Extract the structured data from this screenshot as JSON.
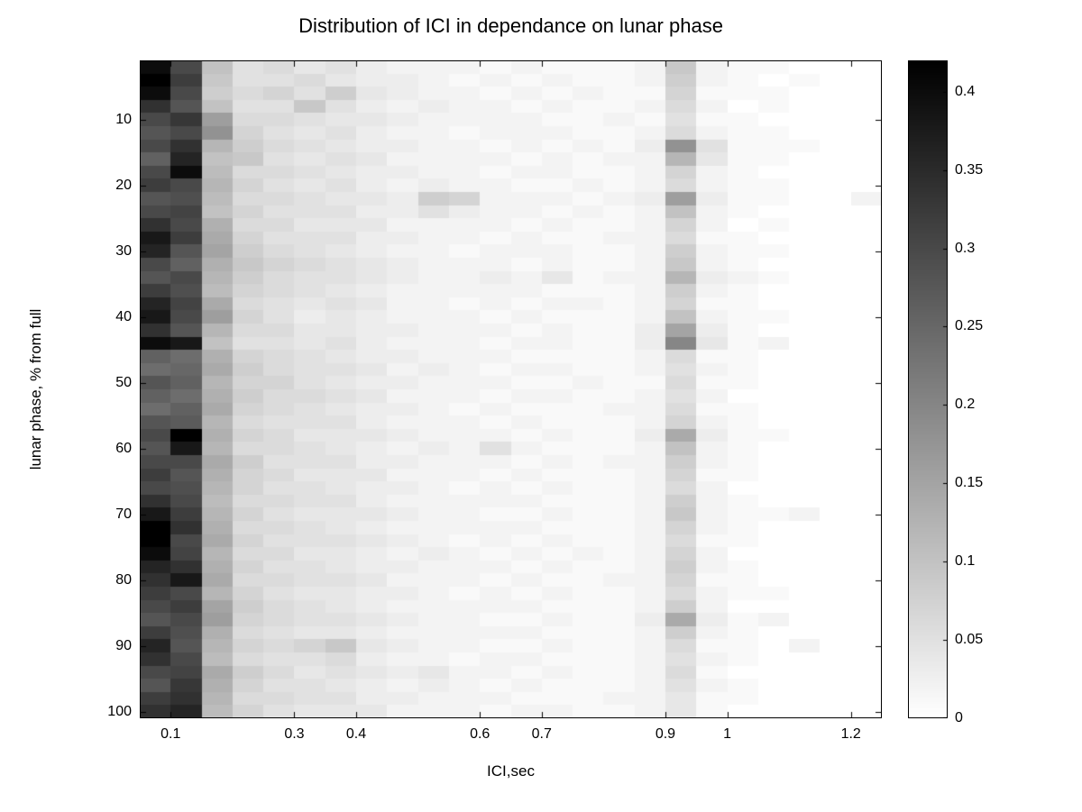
{
  "colors": {
    "background": "#ffffff",
    "axis": "#000000",
    "low": "#ffffff",
    "high": "#000000"
  },
  "chart_data": {
    "type": "heatmap",
    "title": "Distribution of ICI in dependance on lunar phase",
    "xlabel": "ICI,sec",
    "ylabel": "lunar phase, % from full",
    "colormap": "reversed-gray (0 = white, max = black)",
    "grid": false,
    "y_reversed": true,
    "xlim": [
      0.05,
      1.25
    ],
    "ylim": [
      1,
      101
    ],
    "x_ticks": {
      "values": [
        0.1,
        0.3,
        0.4,
        0.6,
        0.7,
        0.9,
        1,
        1.2
      ],
      "labels": [
        "0.1",
        "0.3",
        "0.4",
        "0.6",
        "0.7",
        "0.9",
        "1",
        "1.2"
      ]
    },
    "y_ticks": {
      "values": [
        10,
        20,
        30,
        40,
        50,
        60,
        70,
        80,
        90,
        100
      ],
      "labels": [
        "10",
        "20",
        "30",
        "40",
        "50",
        "60",
        "70",
        "80",
        "90",
        "100"
      ]
    },
    "colorbar": {
      "min": 0,
      "max": 0.42,
      "tick_values": [
        0,
        0.05,
        0.1,
        0.15,
        0.2,
        0.25,
        0.3,
        0.35,
        0.4
      ],
      "tick_labels": [
        "0",
        "0.05",
        "0.1",
        "0.15",
        "0.2",
        "0.25",
        "0.3",
        "0.35",
        "0.4"
      ],
      "position": "right"
    },
    "x_bin_centers": [
      0.075,
      0.125,
      0.175,
      0.225,
      0.275,
      0.325,
      0.375,
      0.425,
      0.475,
      0.525,
      0.575,
      0.625,
      0.675,
      0.725,
      0.775,
      0.825,
      0.875,
      0.925,
      0.975,
      1.025,
      1.075,
      1.125,
      1.175,
      1.225
    ],
    "y_bin_centers": [
      2,
      4,
      6,
      8,
      10,
      12,
      14,
      16,
      18,
      20,
      22,
      24,
      26,
      28,
      30,
      32,
      34,
      36,
      38,
      40,
      42,
      44,
      46,
      48,
      50,
      52,
      54,
      56,
      58,
      60,
      62,
      64,
      66,
      68,
      70,
      72,
      74,
      76,
      78,
      80,
      82,
      84,
      86,
      88,
      90,
      92,
      94,
      96,
      98,
      100
    ],
    "values": [
      [
        0.4,
        0.3,
        0.1,
        0.05,
        0.06,
        0.04,
        0.05,
        0.03,
        0.02,
        0.02,
        0.02,
        0.01,
        0.02,
        0.01,
        0.01,
        0.01,
        0.02,
        0.09,
        0.02,
        0.01,
        0.01,
        0.0,
        0.0,
        0.0
      ],
      [
        0.42,
        0.32,
        0.09,
        0.05,
        0.05,
        0.06,
        0.04,
        0.03,
        0.03,
        0.02,
        0.01,
        0.02,
        0.01,
        0.02,
        0.01,
        0.01,
        0.02,
        0.08,
        0.02,
        0.01,
        0.0,
        0.01,
        0.0,
        0.0
      ],
      [
        0.4,
        0.3,
        0.08,
        0.06,
        0.07,
        0.05,
        0.08,
        0.04,
        0.03,
        0.02,
        0.02,
        0.01,
        0.02,
        0.01,
        0.02,
        0.01,
        0.01,
        0.07,
        0.01,
        0.01,
        0.01,
        0.0,
        0.0,
        0.0
      ],
      [
        0.34,
        0.28,
        0.1,
        0.05,
        0.05,
        0.09,
        0.05,
        0.03,
        0.02,
        0.03,
        0.02,
        0.02,
        0.01,
        0.02,
        0.01,
        0.01,
        0.02,
        0.06,
        0.02,
        0.0,
        0.01,
        0.0,
        0.0,
        0.0
      ],
      [
        0.3,
        0.33,
        0.16,
        0.06,
        0.06,
        0.05,
        0.04,
        0.04,
        0.03,
        0.02,
        0.02,
        0.02,
        0.02,
        0.01,
        0.01,
        0.02,
        0.01,
        0.05,
        0.01,
        0.01,
        0.0,
        0.0,
        0.0,
        0.0
      ],
      [
        0.28,
        0.3,
        0.18,
        0.07,
        0.05,
        0.04,
        0.05,
        0.03,
        0.02,
        0.02,
        0.01,
        0.02,
        0.02,
        0.02,
        0.01,
        0.01,
        0.02,
        0.06,
        0.02,
        0.01,
        0.01,
        0.0,
        0.0,
        0.0
      ],
      [
        0.3,
        0.34,
        0.12,
        0.08,
        0.06,
        0.05,
        0.04,
        0.03,
        0.03,
        0.02,
        0.02,
        0.01,
        0.02,
        0.01,
        0.02,
        0.01,
        0.03,
        0.18,
        0.05,
        0.01,
        0.01,
        0.01,
        0.0,
        0.0
      ],
      [
        0.26,
        0.36,
        0.1,
        0.09,
        0.05,
        0.04,
        0.05,
        0.04,
        0.02,
        0.02,
        0.02,
        0.02,
        0.01,
        0.02,
        0.01,
        0.02,
        0.02,
        0.12,
        0.04,
        0.01,
        0.01,
        0.0,
        0.0,
        0.0
      ],
      [
        0.3,
        0.4,
        0.11,
        0.06,
        0.06,
        0.05,
        0.04,
        0.03,
        0.03,
        0.02,
        0.02,
        0.01,
        0.02,
        0.02,
        0.01,
        0.01,
        0.02,
        0.07,
        0.02,
        0.01,
        0.0,
        0.0,
        0.0,
        0.0
      ],
      [
        0.32,
        0.3,
        0.12,
        0.07,
        0.05,
        0.04,
        0.05,
        0.03,
        0.02,
        0.03,
        0.02,
        0.02,
        0.01,
        0.01,
        0.02,
        0.01,
        0.02,
        0.06,
        0.02,
        0.01,
        0.01,
        0.0,
        0.0,
        0.0
      ],
      [
        0.28,
        0.29,
        0.11,
        0.06,
        0.06,
        0.05,
        0.04,
        0.04,
        0.03,
        0.08,
        0.07,
        0.02,
        0.02,
        0.02,
        0.01,
        0.02,
        0.03,
        0.16,
        0.03,
        0.01,
        0.01,
        0.0,
        0.0,
        0.02
      ],
      [
        0.3,
        0.31,
        0.1,
        0.07,
        0.05,
        0.05,
        0.05,
        0.03,
        0.03,
        0.05,
        0.03,
        0.02,
        0.02,
        0.01,
        0.02,
        0.01,
        0.02,
        0.1,
        0.02,
        0.01,
        0.0,
        0.0,
        0.0,
        0.0
      ],
      [
        0.34,
        0.3,
        0.13,
        0.06,
        0.06,
        0.04,
        0.04,
        0.04,
        0.02,
        0.02,
        0.02,
        0.02,
        0.01,
        0.02,
        0.01,
        0.01,
        0.02,
        0.07,
        0.02,
        0.0,
        0.01,
        0.0,
        0.0,
        0.0
      ],
      [
        0.38,
        0.32,
        0.14,
        0.07,
        0.05,
        0.05,
        0.05,
        0.03,
        0.03,
        0.02,
        0.02,
        0.01,
        0.02,
        0.01,
        0.01,
        0.02,
        0.02,
        0.06,
        0.01,
        0.01,
        0.0,
        0.0,
        0.0,
        0.0
      ],
      [
        0.36,
        0.28,
        0.15,
        0.08,
        0.06,
        0.05,
        0.04,
        0.03,
        0.02,
        0.02,
        0.01,
        0.02,
        0.02,
        0.02,
        0.01,
        0.01,
        0.02,
        0.08,
        0.02,
        0.01,
        0.01,
        0.0,
        0.0,
        0.0
      ],
      [
        0.3,
        0.26,
        0.13,
        0.09,
        0.07,
        0.06,
        0.05,
        0.04,
        0.03,
        0.02,
        0.02,
        0.02,
        0.01,
        0.02,
        0.01,
        0.01,
        0.02,
        0.09,
        0.02,
        0.01,
        0.0,
        0.0,
        0.0,
        0.0
      ],
      [
        0.28,
        0.3,
        0.12,
        0.08,
        0.06,
        0.05,
        0.05,
        0.04,
        0.03,
        0.02,
        0.02,
        0.03,
        0.02,
        0.04,
        0.01,
        0.02,
        0.02,
        0.12,
        0.03,
        0.02,
        0.01,
        0.0,
        0.0,
        0.0
      ],
      [
        0.32,
        0.29,
        0.11,
        0.07,
        0.06,
        0.05,
        0.04,
        0.03,
        0.02,
        0.02,
        0.02,
        0.02,
        0.02,
        0.01,
        0.01,
        0.01,
        0.02,
        0.08,
        0.02,
        0.01,
        0.0,
        0.0,
        0.0,
        0.0
      ],
      [
        0.36,
        0.31,
        0.14,
        0.06,
        0.05,
        0.04,
        0.05,
        0.04,
        0.02,
        0.02,
        0.01,
        0.02,
        0.01,
        0.02,
        0.02,
        0.01,
        0.02,
        0.07,
        0.01,
        0.01,
        0.0,
        0.0,
        0.0,
        0.0
      ],
      [
        0.38,
        0.3,
        0.16,
        0.07,
        0.05,
        0.03,
        0.04,
        0.03,
        0.02,
        0.02,
        0.02,
        0.01,
        0.02,
        0.01,
        0.01,
        0.01,
        0.02,
        0.1,
        0.02,
        0.01,
        0.01,
        0.0,
        0.0,
        0.0
      ],
      [
        0.34,
        0.28,
        0.12,
        0.06,
        0.06,
        0.04,
        0.04,
        0.03,
        0.03,
        0.02,
        0.02,
        0.02,
        0.01,
        0.02,
        0.01,
        0.01,
        0.03,
        0.15,
        0.03,
        0.01,
        0.0,
        0.0,
        0.0,
        0.0
      ],
      [
        0.4,
        0.38,
        0.1,
        0.05,
        0.05,
        0.04,
        0.05,
        0.03,
        0.02,
        0.02,
        0.02,
        0.01,
        0.02,
        0.02,
        0.01,
        0.01,
        0.03,
        0.2,
        0.04,
        0.01,
        0.02,
        0.0,
        0.0,
        0.0
      ],
      [
        0.26,
        0.24,
        0.13,
        0.07,
        0.06,
        0.05,
        0.04,
        0.03,
        0.03,
        0.02,
        0.02,
        0.02,
        0.01,
        0.01,
        0.01,
        0.01,
        0.02,
        0.06,
        0.01,
        0.01,
        0.0,
        0.0,
        0.0,
        0.0
      ],
      [
        0.24,
        0.25,
        0.14,
        0.08,
        0.06,
        0.05,
        0.05,
        0.04,
        0.02,
        0.03,
        0.02,
        0.01,
        0.02,
        0.02,
        0.01,
        0.01,
        0.02,
        0.05,
        0.02,
        0.01,
        0.0,
        0.0,
        0.0,
        0.0
      ],
      [
        0.28,
        0.26,
        0.12,
        0.07,
        0.07,
        0.05,
        0.04,
        0.03,
        0.03,
        0.02,
        0.02,
        0.02,
        0.01,
        0.01,
        0.02,
        0.01,
        0.01,
        0.06,
        0.01,
        0.01,
        0.0,
        0.0,
        0.0,
        0.0
      ],
      [
        0.26,
        0.24,
        0.13,
        0.08,
        0.06,
        0.06,
        0.05,
        0.04,
        0.02,
        0.02,
        0.02,
        0.01,
        0.02,
        0.02,
        0.01,
        0.01,
        0.02,
        0.05,
        0.02,
        0.0,
        0.0,
        0.0,
        0.0,
        0.0
      ],
      [
        0.24,
        0.26,
        0.14,
        0.07,
        0.06,
        0.05,
        0.04,
        0.03,
        0.03,
        0.02,
        0.01,
        0.02,
        0.01,
        0.01,
        0.01,
        0.02,
        0.02,
        0.06,
        0.01,
        0.01,
        0.0,
        0.0,
        0.0,
        0.0
      ],
      [
        0.28,
        0.27,
        0.12,
        0.06,
        0.05,
        0.05,
        0.05,
        0.03,
        0.02,
        0.02,
        0.02,
        0.01,
        0.02,
        0.01,
        0.01,
        0.01,
        0.02,
        0.07,
        0.02,
        0.01,
        0.0,
        0.0,
        0.0,
        0.0
      ],
      [
        0.3,
        0.42,
        0.13,
        0.07,
        0.06,
        0.04,
        0.04,
        0.04,
        0.03,
        0.02,
        0.02,
        0.02,
        0.01,
        0.02,
        0.01,
        0.01,
        0.03,
        0.14,
        0.03,
        0.01,
        0.01,
        0.0,
        0.0,
        0.0
      ],
      [
        0.28,
        0.38,
        0.12,
        0.06,
        0.06,
        0.05,
        0.04,
        0.03,
        0.02,
        0.03,
        0.02,
        0.05,
        0.02,
        0.01,
        0.01,
        0.01,
        0.02,
        0.1,
        0.02,
        0.01,
        0.0,
        0.0,
        0.0,
        0.0
      ],
      [
        0.3,
        0.3,
        0.14,
        0.08,
        0.05,
        0.05,
        0.05,
        0.03,
        0.03,
        0.02,
        0.02,
        0.02,
        0.01,
        0.02,
        0.01,
        0.02,
        0.02,
        0.08,
        0.02,
        0.01,
        0.0,
        0.0,
        0.0,
        0.0
      ],
      [
        0.32,
        0.28,
        0.13,
        0.07,
        0.06,
        0.04,
        0.04,
        0.04,
        0.02,
        0.02,
        0.02,
        0.01,
        0.02,
        0.01,
        0.01,
        0.01,
        0.02,
        0.07,
        0.01,
        0.01,
        0.0,
        0.0,
        0.0,
        0.0
      ],
      [
        0.3,
        0.29,
        0.12,
        0.07,
        0.05,
        0.05,
        0.04,
        0.03,
        0.03,
        0.02,
        0.01,
        0.02,
        0.01,
        0.02,
        0.01,
        0.01,
        0.02,
        0.06,
        0.02,
        0.0,
        0.0,
        0.0,
        0.0,
        0.0
      ],
      [
        0.34,
        0.3,
        0.11,
        0.06,
        0.06,
        0.05,
        0.05,
        0.03,
        0.02,
        0.02,
        0.02,
        0.02,
        0.02,
        0.01,
        0.01,
        0.01,
        0.02,
        0.08,
        0.02,
        0.01,
        0.0,
        0.0,
        0.0,
        0.0
      ],
      [
        0.38,
        0.32,
        0.12,
        0.07,
        0.05,
        0.04,
        0.04,
        0.04,
        0.03,
        0.02,
        0.02,
        0.01,
        0.01,
        0.02,
        0.01,
        0.01,
        0.02,
        0.09,
        0.02,
        0.01,
        0.01,
        0.02,
        0.0,
        0.0
      ],
      [
        0.42,
        0.34,
        0.13,
        0.06,
        0.06,
        0.05,
        0.04,
        0.03,
        0.02,
        0.02,
        0.02,
        0.02,
        0.02,
        0.01,
        0.01,
        0.01,
        0.02,
        0.07,
        0.02,
        0.01,
        0.0,
        0.0,
        0.0,
        0.0
      ],
      [
        0.42,
        0.3,
        0.14,
        0.07,
        0.05,
        0.05,
        0.05,
        0.04,
        0.03,
        0.02,
        0.01,
        0.02,
        0.01,
        0.02,
        0.01,
        0.01,
        0.02,
        0.06,
        0.01,
        0.01,
        0.0,
        0.0,
        0.0,
        0.0
      ],
      [
        0.4,
        0.31,
        0.12,
        0.06,
        0.06,
        0.04,
        0.04,
        0.03,
        0.02,
        0.03,
        0.02,
        0.01,
        0.02,
        0.01,
        0.02,
        0.01,
        0.02,
        0.07,
        0.02,
        0.0,
        0.0,
        0.0,
        0.0,
        0.0
      ],
      [
        0.36,
        0.34,
        0.13,
        0.07,
        0.05,
        0.05,
        0.04,
        0.03,
        0.03,
        0.02,
        0.02,
        0.02,
        0.01,
        0.02,
        0.01,
        0.01,
        0.02,
        0.08,
        0.02,
        0.01,
        0.0,
        0.0,
        0.0,
        0.0
      ],
      [
        0.34,
        0.38,
        0.14,
        0.06,
        0.06,
        0.05,
        0.05,
        0.04,
        0.02,
        0.02,
        0.02,
        0.01,
        0.02,
        0.01,
        0.01,
        0.02,
        0.02,
        0.07,
        0.01,
        0.01,
        0.0,
        0.0,
        0.0,
        0.0
      ],
      [
        0.32,
        0.3,
        0.12,
        0.07,
        0.05,
        0.04,
        0.04,
        0.03,
        0.03,
        0.02,
        0.01,
        0.02,
        0.01,
        0.02,
        0.01,
        0.01,
        0.02,
        0.06,
        0.02,
        0.01,
        0.01,
        0.0,
        0.0,
        0.0
      ],
      [
        0.3,
        0.32,
        0.15,
        0.08,
        0.06,
        0.05,
        0.04,
        0.03,
        0.02,
        0.02,
        0.02,
        0.02,
        0.02,
        0.01,
        0.01,
        0.01,
        0.02,
        0.08,
        0.02,
        0.0,
        0.0,
        0.0,
        0.0,
        0.0
      ],
      [
        0.28,
        0.3,
        0.16,
        0.07,
        0.06,
        0.05,
        0.05,
        0.04,
        0.03,
        0.02,
        0.02,
        0.01,
        0.01,
        0.02,
        0.01,
        0.01,
        0.03,
        0.14,
        0.03,
        0.01,
        0.02,
        0.0,
        0.0,
        0.0
      ],
      [
        0.32,
        0.29,
        0.13,
        0.06,
        0.05,
        0.04,
        0.04,
        0.03,
        0.02,
        0.02,
        0.02,
        0.02,
        0.02,
        0.01,
        0.01,
        0.01,
        0.02,
        0.08,
        0.02,
        0.01,
        0.0,
        0.0,
        0.0,
        0.0
      ],
      [
        0.36,
        0.28,
        0.12,
        0.07,
        0.06,
        0.07,
        0.09,
        0.04,
        0.03,
        0.02,
        0.02,
        0.01,
        0.01,
        0.02,
        0.01,
        0.01,
        0.02,
        0.06,
        0.01,
        0.01,
        0.0,
        0.02,
        0.0,
        0.0
      ],
      [
        0.34,
        0.3,
        0.11,
        0.06,
        0.05,
        0.05,
        0.06,
        0.03,
        0.02,
        0.02,
        0.01,
        0.02,
        0.02,
        0.01,
        0.01,
        0.01,
        0.02,
        0.05,
        0.02,
        0.01,
        0.0,
        0.0,
        0.0,
        0.0
      ],
      [
        0.3,
        0.31,
        0.14,
        0.08,
        0.06,
        0.04,
        0.05,
        0.04,
        0.03,
        0.04,
        0.02,
        0.02,
        0.01,
        0.02,
        0.01,
        0.01,
        0.02,
        0.06,
        0.01,
        0.0,
        0.0,
        0.0,
        0.0,
        0.0
      ],
      [
        0.28,
        0.33,
        0.13,
        0.07,
        0.05,
        0.05,
        0.04,
        0.03,
        0.02,
        0.03,
        0.02,
        0.01,
        0.02,
        0.01,
        0.01,
        0.01,
        0.02,
        0.05,
        0.02,
        0.01,
        0.0,
        0.0,
        0.0,
        0.0
      ],
      [
        0.32,
        0.34,
        0.12,
        0.06,
        0.06,
        0.05,
        0.05,
        0.03,
        0.03,
        0.02,
        0.02,
        0.02,
        0.01,
        0.01,
        0.01,
        0.02,
        0.02,
        0.04,
        0.01,
        0.01,
        0.0,
        0.0,
        0.0,
        0.0
      ],
      [
        0.34,
        0.36,
        0.11,
        0.07,
        0.05,
        0.04,
        0.04,
        0.04,
        0.02,
        0.02,
        0.02,
        0.01,
        0.02,
        0.02,
        0.01,
        0.01,
        0.02,
        0.04,
        0.01,
        0.0,
        0.0,
        0.0,
        0.0,
        0.0
      ]
    ]
  }
}
